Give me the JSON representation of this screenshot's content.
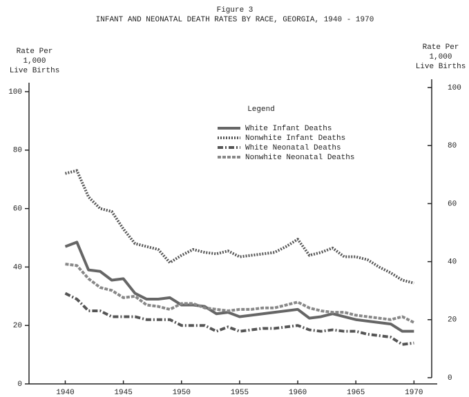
{
  "chart_data": {
    "type": "line",
    "figure_label": "Figure 3",
    "title": "INFANT AND NEONATAL DEATH RATES BY RACE, GEORGIA, 1940 - 1970",
    "y_label": [
      "Rate Per",
      "1,000",
      "Live Births"
    ],
    "y2_label": [
      "Rate Per",
      "1,000",
      "Live Births"
    ],
    "legend_title": "Legend",
    "x": [
      1940,
      1941,
      1942,
      1943,
      1944,
      1945,
      1946,
      1947,
      1948,
      1949,
      1950,
      1951,
      1952,
      1953,
      1954,
      1955,
      1956,
      1957,
      1958,
      1959,
      1960,
      1961,
      1962,
      1963,
      1964,
      1965,
      1966,
      1967,
      1968,
      1969,
      1970
    ],
    "xlim": [
      1937,
      1972
    ],
    "xticks": [
      1940,
      1945,
      1950,
      1955,
      1960,
      1965,
      1970
    ],
    "ylim": [
      0,
      100
    ],
    "yticks": [
      0,
      20,
      40,
      60,
      80,
      100
    ],
    "y2lim": [
      0,
      100
    ],
    "y2ticks": [
      0,
      20,
      40,
      60,
      80,
      100
    ],
    "series": [
      {
        "name": "White Infant Deaths",
        "color": "#666666",
        "dash": "none",
        "values": [
          47,
          48.5,
          39,
          38.5,
          35.5,
          36,
          31,
          29,
          29,
          29.5,
          27,
          27,
          26.5,
          24,
          24.5,
          23,
          23.5,
          24,
          24.5,
          25,
          25.5,
          22.5,
          23,
          24,
          23,
          22,
          21.5,
          21,
          20.5,
          18,
          18
        ]
      },
      {
        "name": "Nonwhite Infant Deaths",
        "color": "#555555",
        "dash": "2 2",
        "values": [
          72,
          73,
          64,
          60,
          59,
          53,
          48,
          47,
          46,
          41.5,
          44,
          46,
          45,
          44.5,
          45.5,
          43.5,
          44,
          44.5,
          45,
          47,
          49.5,
          44,
          45,
          46.5,
          43.5,
          43.5,
          42.5,
          40,
          38,
          35.5,
          34.5
        ]
      },
      {
        "name": "White Neonatal Deaths",
        "color": "#555555",
        "dash": "8 3 2 3",
        "values": [
          31,
          29,
          25,
          25,
          23,
          23,
          23,
          22,
          22,
          22,
          20,
          20,
          20,
          18,
          19.5,
          18,
          18.5,
          19,
          19,
          19.5,
          20,
          18.5,
          18,
          18.5,
          18,
          18,
          17,
          16.5,
          16,
          13.5,
          14
        ]
      },
      {
        "name": "Nonwhite Neonatal Deaths",
        "color": "#888888",
        "dash": "5 2",
        "values": [
          41,
          40.5,
          36,
          33,
          32,
          29.5,
          30,
          27,
          26.5,
          25.5,
          27.5,
          27.5,
          26,
          25.5,
          25,
          25.5,
          25.5,
          26,
          26,
          27,
          28,
          26,
          25,
          24.5,
          24.5,
          23.5,
          23,
          22.5,
          22,
          23,
          21
        ]
      }
    ]
  }
}
